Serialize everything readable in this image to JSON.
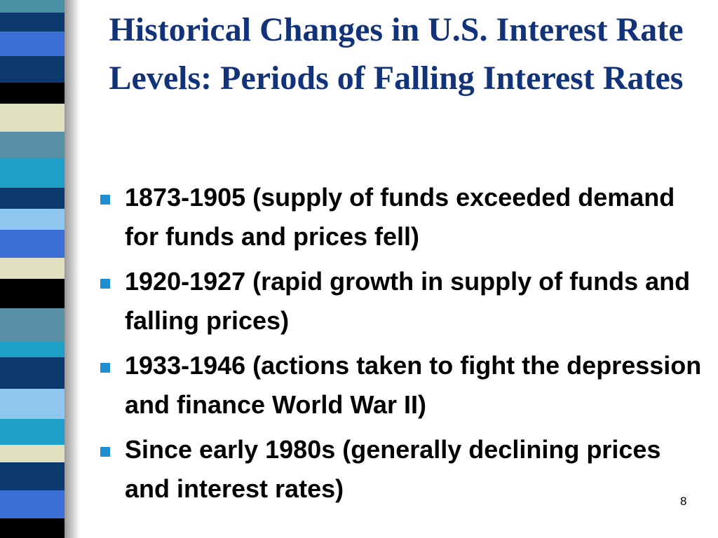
{
  "slide": {
    "title": "Historical Changes in U.S. Interest Rate Levels: Periods of Falling Interest Rates",
    "bullets": [
      "1873-1905 (supply of funds exceeded demand for funds and prices fell)",
      "1920-1927 (rapid growth in supply of funds and falling prices)",
      "1933-1946 (actions taken to fight the depression and finance World War II)",
      "Since early 1980s (generally declining prices and interest rates)"
    ],
    "page_number": "8"
  }
}
